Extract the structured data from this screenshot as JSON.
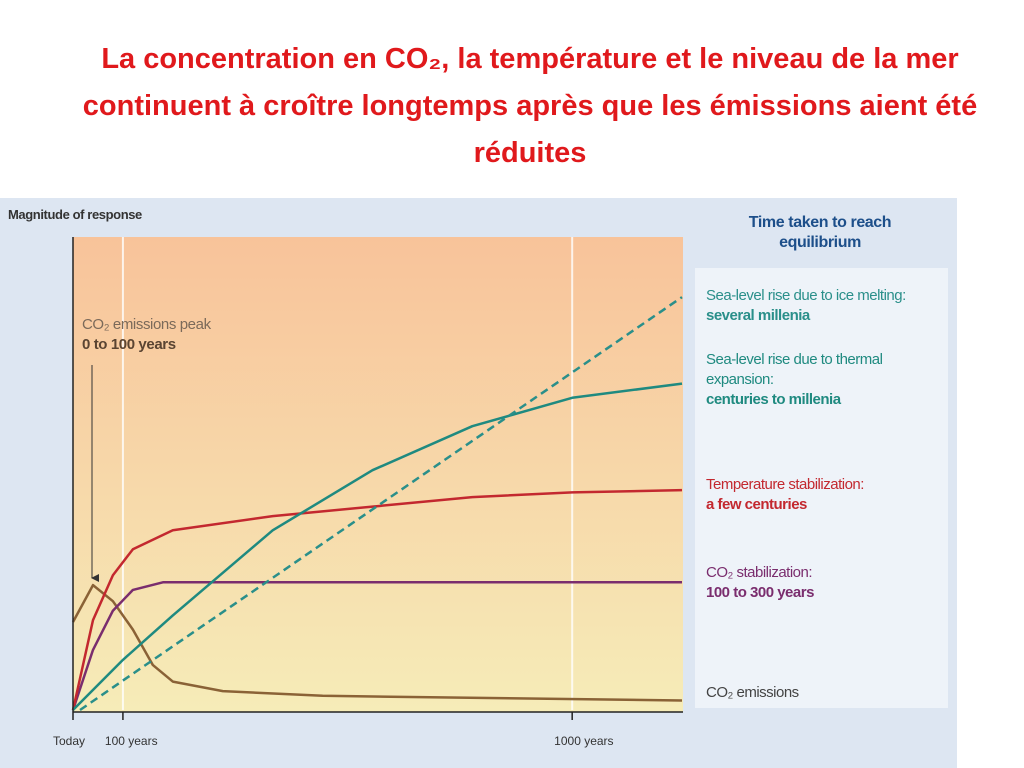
{
  "chart_data": {
    "type": "line",
    "title": "La concentration en CO₂, la  température et le niveau de la mer continuent à croître longtemps après que les émissions aient été réduites",
    "y_label": "Magnitude of response",
    "legend_title": "Time taken to reach equilibrium",
    "annotation": {
      "text": "CO₂ emissions peak",
      "detail": "0 to 100 years"
    },
    "xlim": [
      0,
      1222
    ],
    "ylim": [
      0,
      100
    ],
    "xticks": [
      {
        "value": 0,
        "label": "Today"
      },
      {
        "value": 100,
        "label": "100 years"
      },
      {
        "value": 1000,
        "label": "1000  years"
      }
    ],
    "grid": true,
    "series": [
      {
        "name": "CO₂ emissions",
        "color": "#8a6236",
        "style": "solid",
        "x": [
          0,
          40,
          80,
          120,
          160,
          200,
          300,
          500,
          1220
        ],
        "values": [
          18.6,
          26.4,
          23,
          17,
          9.5,
          6,
          4,
          3,
          2
        ]
      },
      {
        "name": "CO₂ stabilization:",
        "timescale": "100 to 300 years",
        "color": "#7a2d6e",
        "style": "solid",
        "x": [
          0,
          40,
          80,
          120,
          180,
          1220
        ],
        "values": [
          0,
          12.7,
          21,
          25.4,
          27,
          27
        ]
      },
      {
        "name": "Temperature stabilization:",
        "timescale": "a few centuries",
        "color": "#c3282f",
        "style": "solid",
        "x": [
          0,
          40,
          80,
          120,
          200,
          400,
          600,
          800,
          1000,
          1220
        ],
        "values": [
          0,
          19,
          28.5,
          34,
          38,
          41,
          43,
          45,
          46,
          46.5
        ]
      },
      {
        "name": "Sea-level rise due to thermal expansion:",
        "timescale": "centuries to millenia",
        "color": "#1f8a80",
        "style": "solid",
        "x": [
          0,
          100,
          200,
          400,
          600,
          800,
          1000,
          1220
        ],
        "values": [
          0,
          10.6,
          20,
          38,
          50.7,
          60,
          66,
          69
        ]
      },
      {
        "name": "Sea-level rise due to ice melting:",
        "timescale": "several millenia",
        "color": "#2a8f8a",
        "style": "dashed",
        "x": [
          14,
          1220
        ],
        "values": [
          0,
          87.3
        ]
      }
    ]
  }
}
